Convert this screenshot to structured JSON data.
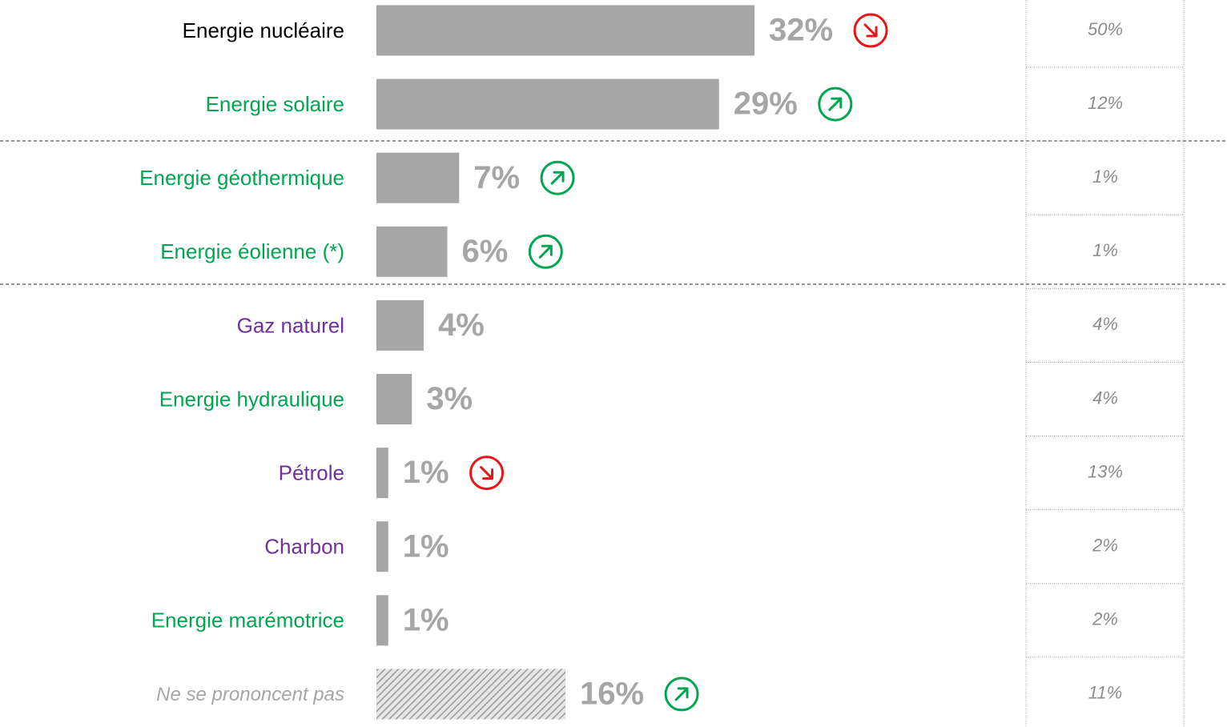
{
  "chart_data": {
    "type": "bar",
    "categories": [
      "Energie nucléaire",
      "Energie solaire",
      "Energie géothermique",
      "Energie éolienne (*)",
      "Gaz naturel",
      "Energie hydraulique",
      "Pétrole",
      "Charbon",
      "Energie marémotrice",
      "Ne se prononcent pas"
    ],
    "values": [
      32,
      29,
      7,
      6,
      4,
      3,
      1,
      1,
      1,
      16
    ],
    "value_labels": [
      "32%",
      "29%",
      "7%",
      "6%",
      "4%",
      "3%",
      "1%",
      "1%",
      "1%",
      "16%"
    ],
    "color": "#a6a6a6",
    "hatched": [
      false,
      false,
      false,
      false,
      false,
      false,
      false,
      false,
      false,
      true
    ],
    "label_colors": [
      "#000000",
      "#00a650",
      "#00a650",
      "#00a650",
      "#7030a0",
      "#00a650",
      "#7030a0",
      "#7030a0",
      "#00a650",
      "#a6a6a6"
    ],
    "trends": [
      "down",
      "up",
      "up",
      "up",
      null,
      null,
      "down",
      null,
      null,
      "up"
    ],
    "trend_colors": {
      "up": "#00a650",
      "down": "#e8141b"
    },
    "comparison": [
      "50%",
      "12%",
      "1%",
      "1%",
      "4%",
      "4%",
      "13%",
      "2%",
      "2%",
      "11%"
    ]
  }
}
